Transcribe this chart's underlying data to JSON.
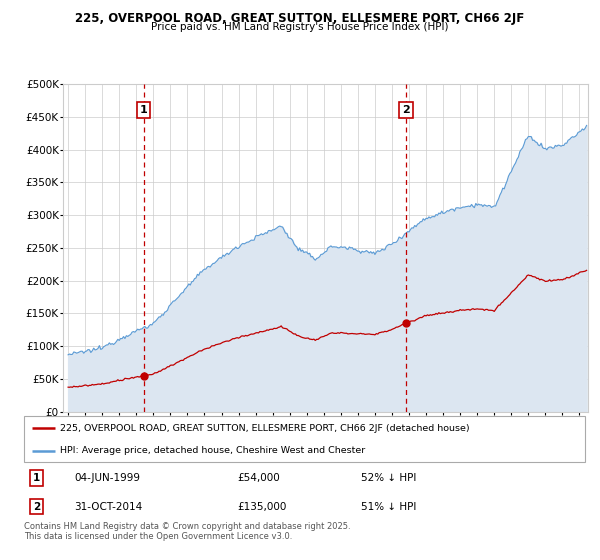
{
  "title1": "225, OVERPOOL ROAD, GREAT SUTTON, ELLESMERE PORT, CH66 2JF",
  "title2": "Price paid vs. HM Land Registry's House Price Index (HPI)",
  "hpi_color": "#5b9bd5",
  "hpi_fill_color": "#dce6f1",
  "price_color": "#c00000",
  "vline_color": "#c00000",
  "sale1_date_label": "04-JUN-1999",
  "sale1_price_label": "£54,000",
  "sale1_pct_label": "52% ↓ HPI",
  "sale2_date_label": "31-OCT-2014",
  "sale2_price_label": "£135,000",
  "sale2_pct_label": "51% ↓ HPI",
  "legend_line1": "225, OVERPOOL ROAD, GREAT SUTTON, ELLESMERE PORT, CH66 2JF (detached house)",
  "legend_line2": "HPI: Average price, detached house, Cheshire West and Chester",
  "footer": "Contains HM Land Registry data © Crown copyright and database right 2025.\nThis data is licensed under the Open Government Licence v3.0.",
  "sale1_year": 1999.43,
  "sale1_price": 54000,
  "sale2_year": 2014.83,
  "sale2_price": 135000,
  "ylim": [
    0,
    500000
  ],
  "xlim_start": 1994.7,
  "xlim_end": 2025.5,
  "background": "#ffffff",
  "grid_color": "#cccccc",
  "border_color": "#aaaaaa"
}
